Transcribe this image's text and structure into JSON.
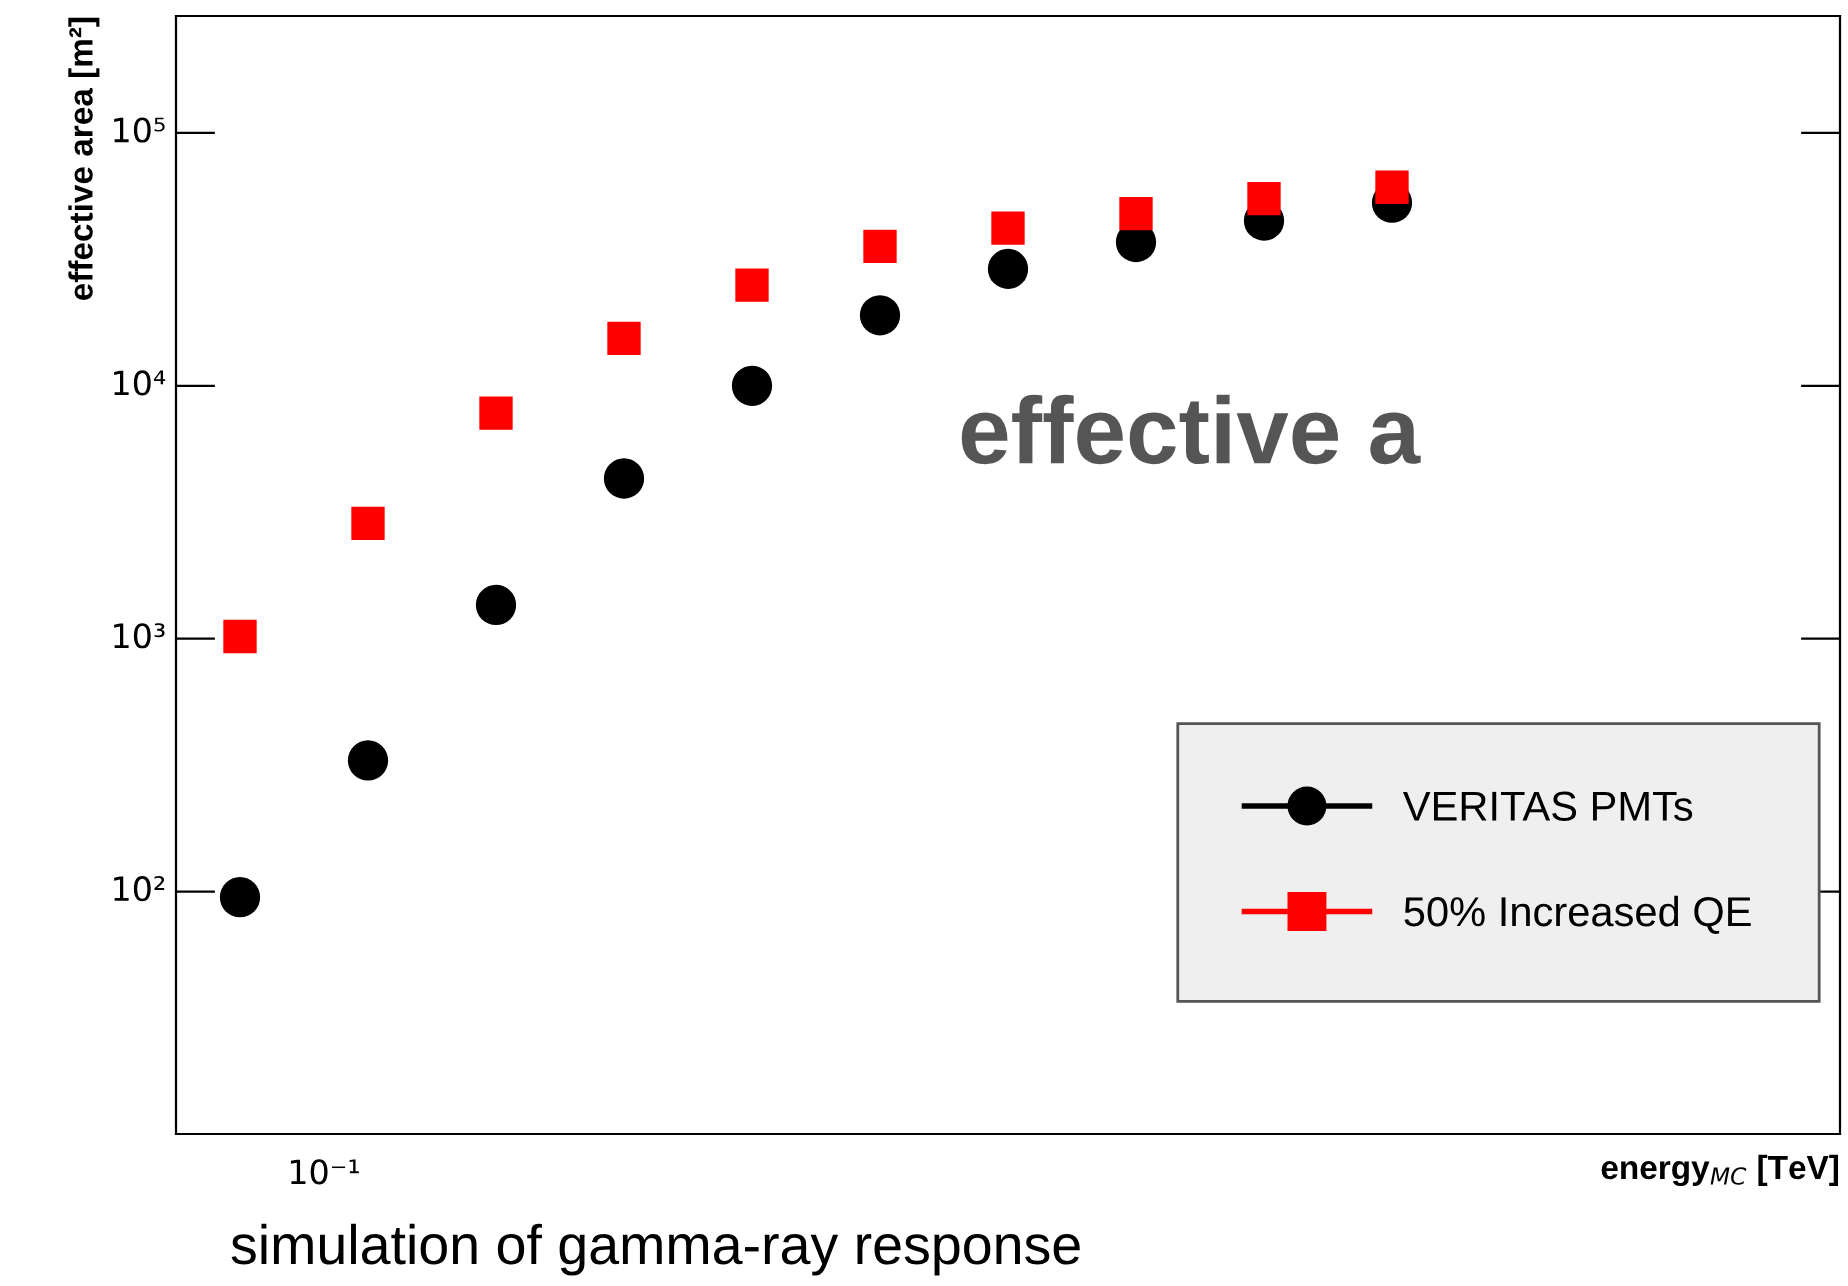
{
  "chart_data": {
    "type": "scatter",
    "xlabel": "energy$_{MC}$ [TeV]",
    "ylabel": "effective area [m²]",
    "log": "y",
    "ylim": [
      11,
      290000
    ],
    "yticks": [
      {
        "value": 100,
        "label": "10²"
      },
      {
        "value": 1000,
        "label": "10³"
      },
      {
        "value": 10000,
        "label": "10⁴"
      },
      {
        "value": 100000,
        "label": "10⁵"
      }
    ],
    "categories": [
      null,
      null,
      null,
      null,
      null,
      null,
      null,
      null,
      null,
      null,
      null,
      null,
      null
    ],
    "series": [
      {
        "name": "VERITAS PMTs",
        "color": "#000000",
        "marker": "circle",
        "values": [
          95,
          330,
          1360,
          4300,
          10000,
          19000,
          29000,
          37000,
          45000,
          53000,
          null,
          null,
          null
        ]
      },
      {
        "name": "50% Increased QE",
        "color": "#ff0000",
        "marker": "square",
        "values": [
          1020,
          2860,
          7800,
          15400,
          25000,
          35600,
          42000,
          48000,
          55000,
          61000,
          null,
          null,
          null
        ]
      }
    ],
    "legend": "bottom right",
    "grid": false,
    "annotations": [
      "10⁻¹",
      "effective a",
      "simulation of gamma-ray response"
    ]
  }
}
